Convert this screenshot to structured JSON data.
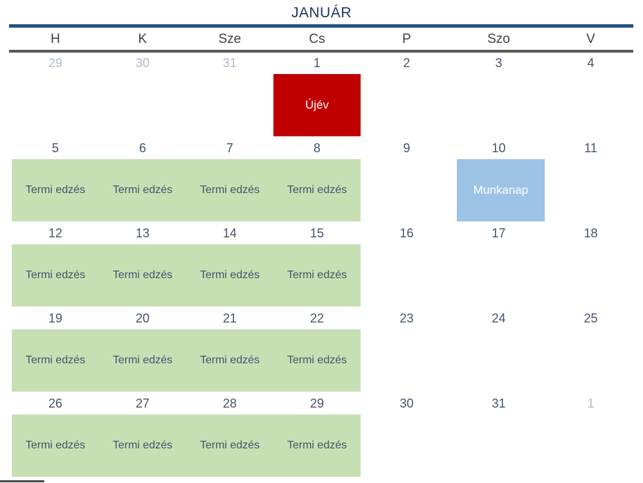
{
  "title": "JANUÁR",
  "day_headers": [
    "H",
    "K",
    "Sze",
    "Cs",
    "P",
    "Szo",
    "V"
  ],
  "colors": {
    "title_text": "#1F3864",
    "top_rule": "#26537E",
    "header_rule": "#595959",
    "day_number": "#44546A",
    "adjacent_month_number": "#AFBACB",
    "holiday_bg": "#C00000",
    "holiday_text": "#FFFFFF",
    "training_bg": "#C6E0B4",
    "training_text": "#44546A",
    "workday_bg": "#9CC2E5",
    "workday_text": "#FFFFFF"
  },
  "weeks": [
    {
      "days": [
        "29",
        "30",
        "31",
        "1",
        "2",
        "3",
        "4"
      ],
      "events": {
        "ujev": "Újév"
      }
    },
    {
      "days": [
        "5",
        "6",
        "7",
        "8",
        "9",
        "10",
        "11"
      ],
      "events": {
        "termi": [
          "Termi edzés",
          "Termi edzés",
          "Termi edzés",
          "Termi edzés"
        ],
        "munkanap": "Munkanap"
      }
    },
    {
      "days": [
        "12",
        "13",
        "14",
        "15",
        "16",
        "17",
        "18"
      ],
      "events": {
        "termi": [
          "Termi edzés",
          "Termi edzés",
          "Termi edzés",
          "Termi edzés"
        ]
      }
    },
    {
      "days": [
        "19",
        "20",
        "21",
        "22",
        "23",
        "24",
        "25"
      ],
      "events": {
        "termi": [
          "Termi edzés",
          "Termi edzés",
          "Termi edzés",
          "Termi edzés"
        ]
      }
    },
    {
      "days": [
        "26",
        "27",
        "28",
        "29",
        "30",
        "31",
        "1"
      ],
      "events": {
        "termi": [
          "Termi edzés",
          "Termi edzés",
          "Termi edzés",
          "Termi edzés"
        ]
      }
    }
  ]
}
